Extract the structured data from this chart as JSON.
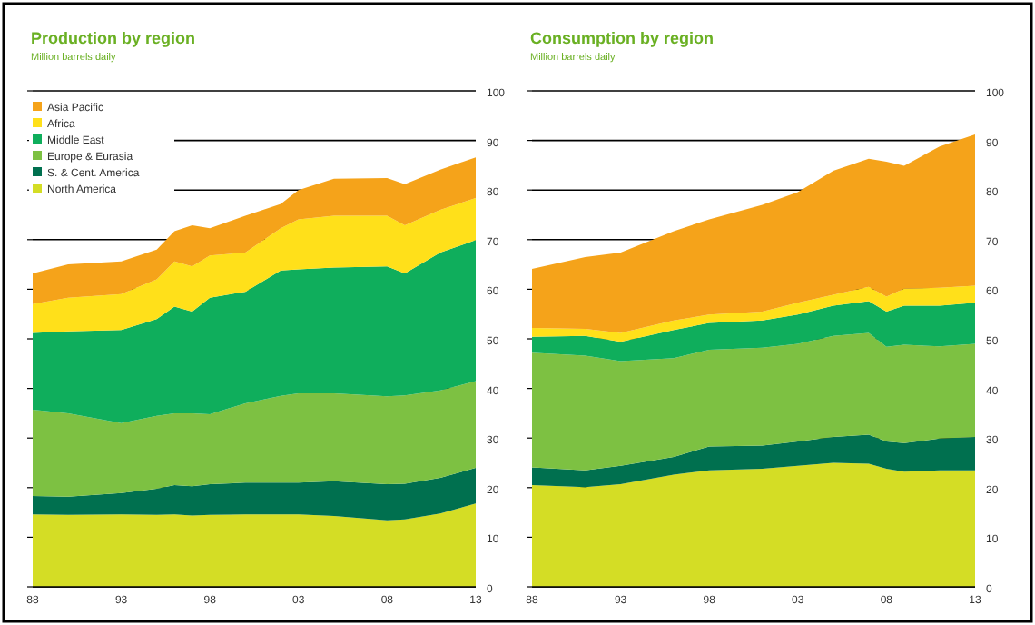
{
  "chart_data": [
    {
      "type": "area",
      "title": "Production by region",
      "subtitle": "Million barrels daily",
      "stacked": true,
      "grid": "y",
      "legend": "top left",
      "x": [
        1988,
        1990,
        1993,
        1995,
        1996,
        1997,
        1998,
        2000,
        2002,
        2003,
        2005,
        2008,
        2009,
        2011,
        2013
      ],
      "xlim": [
        1988,
        2013
      ],
      "xticks": [
        {
          "value": 1988,
          "label": "88"
        },
        {
          "value": 1993,
          "label": "93"
        },
        {
          "value": 1998,
          "label": "98"
        },
        {
          "value": 2003,
          "label": "03"
        },
        {
          "value": 2008,
          "label": "08"
        },
        {
          "value": 2013,
          "label": "13"
        }
      ],
      "ylim": [
        0,
        100
      ],
      "yticks": [
        0,
        10,
        20,
        30,
        40,
        50,
        60,
        70,
        80,
        90,
        100
      ],
      "series": [
        {
          "name": "North America",
          "color": "#d4dd25",
          "values": [
            14.6,
            14.5,
            14.6,
            14.5,
            14.6,
            14.4,
            14.5,
            14.6,
            14.6,
            14.6,
            14.3,
            13.4,
            13.6,
            14.8,
            16.8
          ]
        },
        {
          "name": "S. & Cent. America",
          "color": "#00704f",
          "values": [
            3.7,
            3.7,
            4.3,
            5.3,
            5.9,
            5.9,
            6.2,
            6.4,
            6.4,
            6.4,
            7,
            7.3,
            7.2,
            7.2,
            7.2
          ]
        },
        {
          "name": "Europe & Eurasia",
          "color": "#7dc142",
          "values": [
            17.4,
            16.8,
            14.1,
            14.7,
            14.5,
            14.7,
            14.1,
            16,
            17.5,
            18,
            17.7,
            17.7,
            17.8,
            17.6,
            17.5
          ]
        },
        {
          "name": "Middle East",
          "color": "#0fae5c",
          "values": [
            15.5,
            16.5,
            18.8,
            19.5,
            21.5,
            20.5,
            23.5,
            22.5,
            25.3,
            25,
            25.4,
            26.2,
            24.6,
            27.8,
            28.4
          ]
        },
        {
          "name": "Africa",
          "color": "#ffe01a",
          "values": [
            5.8,
            6.8,
            7.2,
            8,
            9.1,
            9.1,
            8.5,
            7.9,
            8.5,
            10.1,
            10.4,
            10.2,
            9.7,
            8.6,
            8.5
          ]
        },
        {
          "name": "Asia Pacific",
          "color": "#f5a31a",
          "values": [
            6.2,
            6.7,
            6.6,
            6,
            6.1,
            8.3,
            5.5,
            7.4,
            4.9,
            5.9,
            7.5,
            7.6,
            8.3,
            8.1,
            8.2
          ]
        }
      ]
    },
    {
      "type": "area",
      "title": "Consumption by region",
      "subtitle": "Million barrels daily",
      "stacked": true,
      "grid": "y",
      "x": [
        1988,
        1991,
        1993,
        1996,
        1998,
        2001,
        2003,
        2005,
        2007,
        2008,
        2009,
        2011,
        2013
      ],
      "xlim": [
        1988,
        2013
      ],
      "xticks": [
        {
          "value": 1988,
          "label": "88"
        },
        {
          "value": 1993,
          "label": "93"
        },
        {
          "value": 1998,
          "label": "98"
        },
        {
          "value": 2003,
          "label": "03"
        },
        {
          "value": 2008,
          "label": "08"
        },
        {
          "value": 2013,
          "label": "13"
        }
      ],
      "ylim": [
        0,
        100
      ],
      "yticks": [
        0,
        10,
        20,
        30,
        40,
        50,
        60,
        70,
        80,
        90,
        100
      ],
      "series": [
        {
          "color": "#d4dd25",
          "values": [
            20.5,
            20.1,
            20.7,
            22.6,
            23.5,
            23.8,
            24.4,
            25,
            24.8,
            23.8,
            23.2,
            23.5,
            23.5
          ]
        },
        {
          "color": "#00704f",
          "values": [
            3.6,
            3.4,
            3.7,
            3.6,
            4.8,
            4.7,
            4.9,
            5.2,
            5.9,
            5.5,
            5.8,
            6.4,
            6.7
          ]
        },
        {
          "color": "#7dc142",
          "values": [
            23.1,
            23.1,
            21.1,
            19.9,
            19.5,
            19.7,
            19.7,
            20.4,
            20.5,
            19.1,
            19.8,
            18.6,
            18.8
          ]
        },
        {
          "color": "#0fae5c",
          "values": [
            3.2,
            4,
            3.9,
            5.7,
            5.4,
            5.5,
            5.9,
            6.1,
            6.4,
            7.1,
            7.9,
            8.2,
            8.3
          ]
        },
        {
          "color": "#ffe01a",
          "values": [
            1.8,
            1.4,
            1.8,
            1.9,
            1.7,
            1.8,
            2.4,
            2.2,
            2.9,
            3,
            3.4,
            3.6,
            3.4
          ]
        },
        {
          "color": "#f5a31a",
          "values": [
            11.9,
            14.5,
            16.2,
            18,
            19.2,
            21.5,
            22.3,
            25,
            25.8,
            27.2,
            24.8,
            28.5,
            30.5
          ]
        }
      ]
    }
  ]
}
